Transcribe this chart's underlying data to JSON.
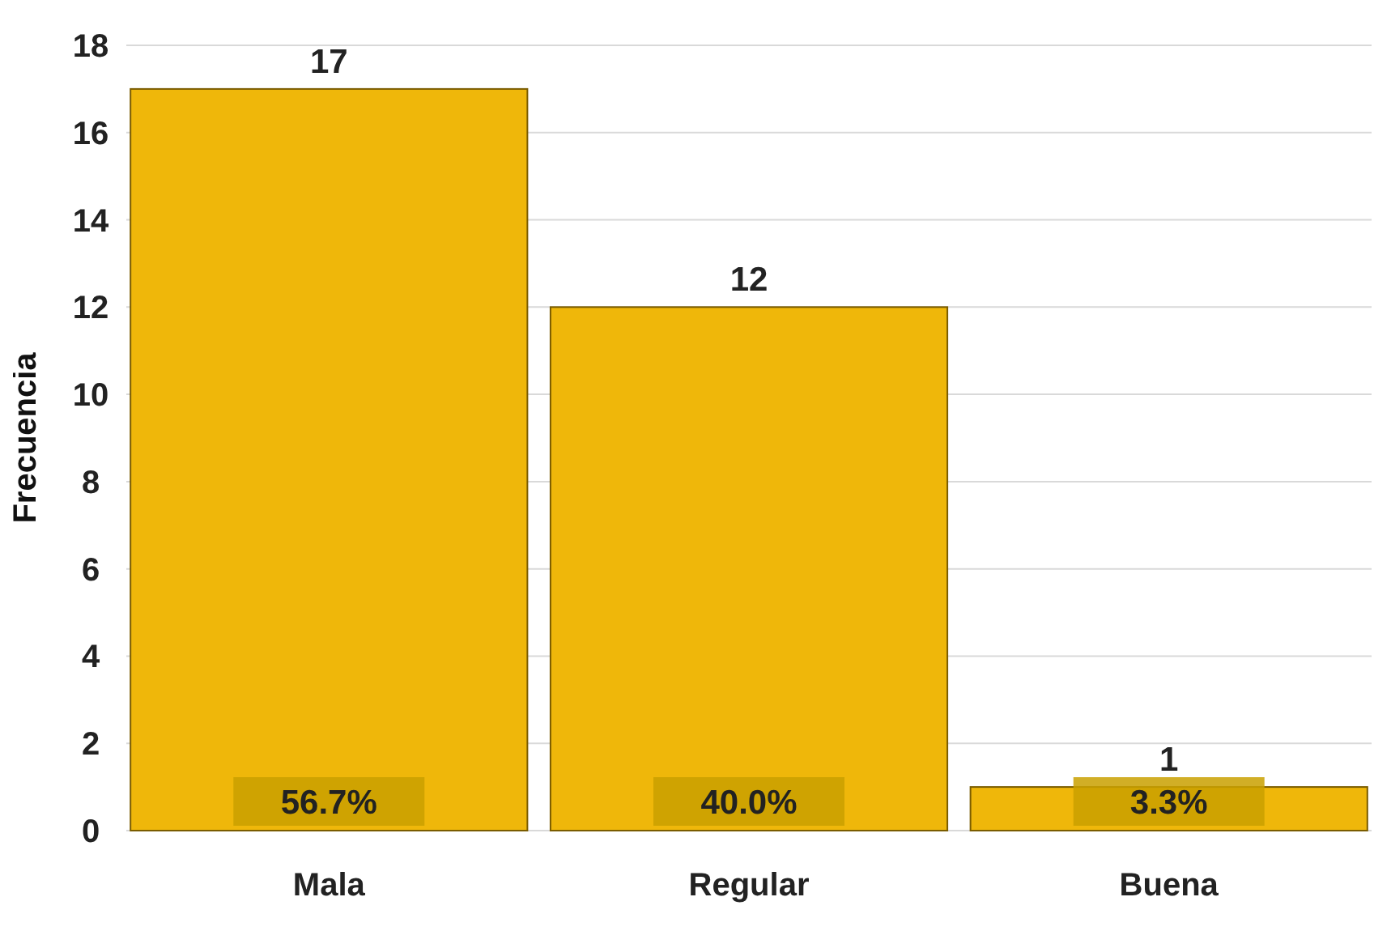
{
  "chart_data": {
    "type": "bar",
    "ylabel": "Frecuencia",
    "categories": [
      "Mala",
      "Regular",
      "Buena"
    ],
    "values": [
      17,
      12,
      1
    ],
    "color": "#efb70a",
    "ylim": [
      0,
      18
    ],
    "yticks": [
      0,
      2,
      4,
      6,
      8,
      10,
      12,
      14,
      16,
      18
    ],
    "grid": "y",
    "data_labels": true,
    "annotations": [
      "56.7%",
      "40.0%",
      "3.3%"
    ]
  }
}
